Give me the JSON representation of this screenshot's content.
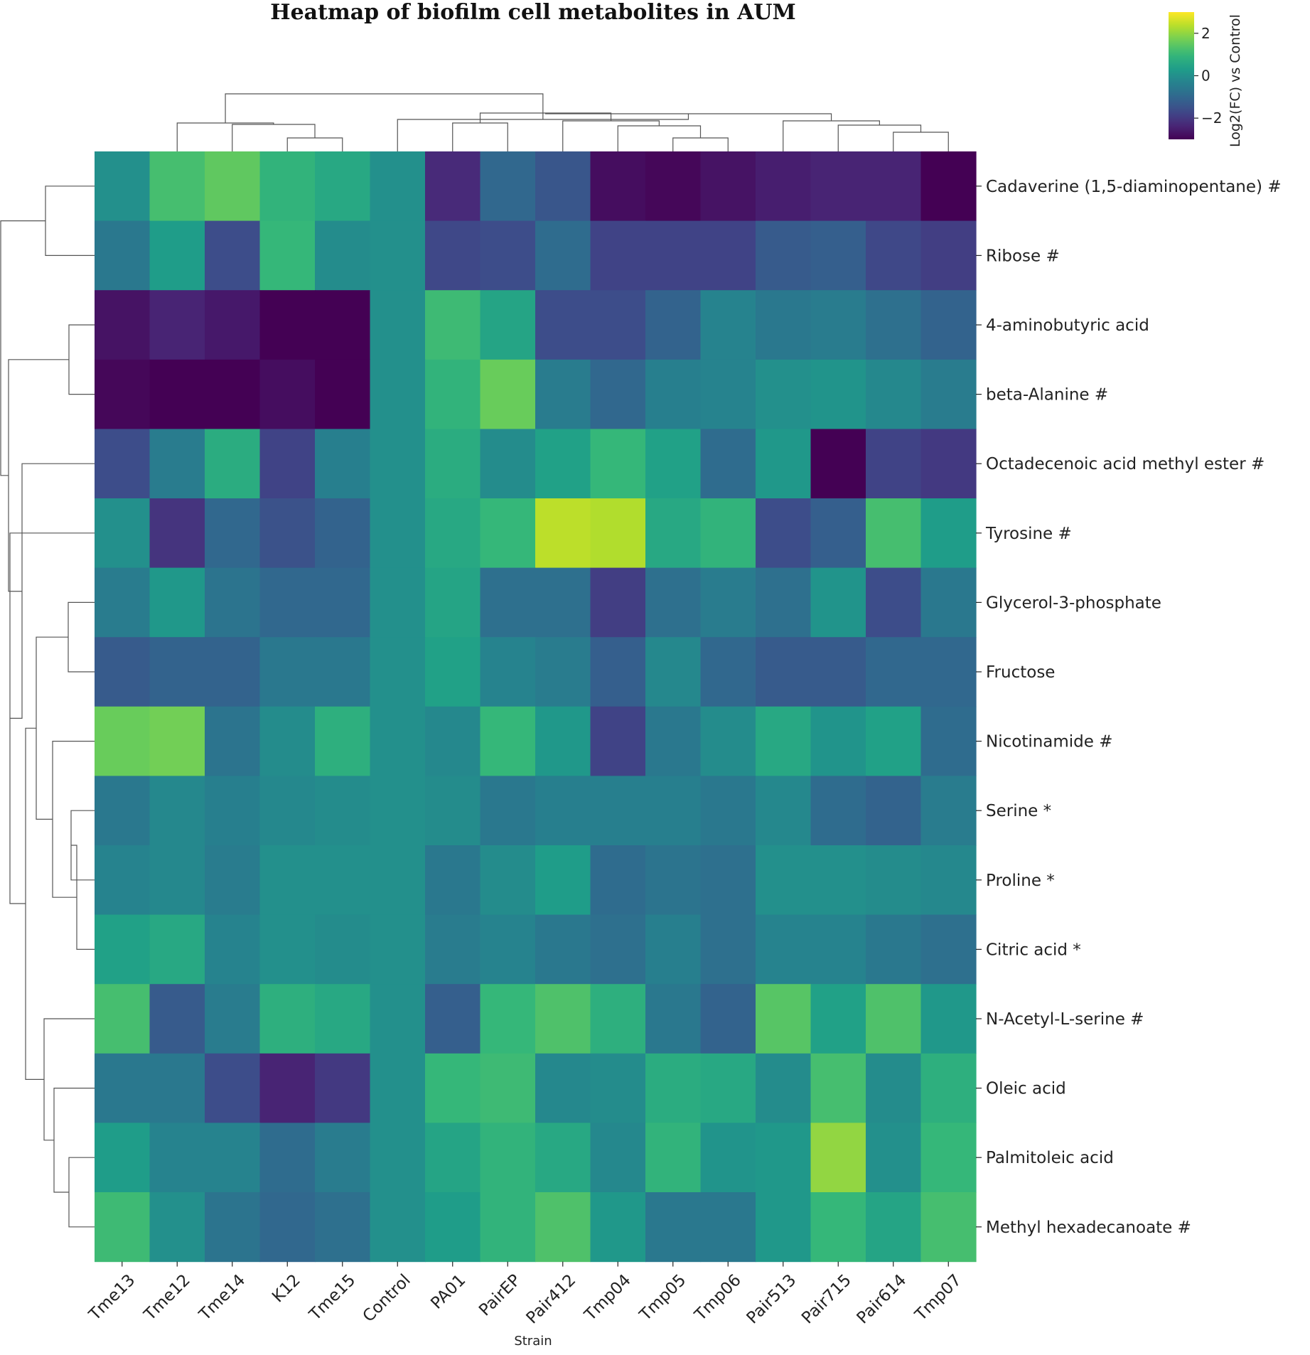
{
  "chart_data": {
    "type": "heatmap",
    "title": "Heatmap of biofilm cell metabolites in AUM",
    "xlabel": "Strain",
    "colorbar_label": "Log2(FC) vs Control",
    "colorbar_ticks": [
      "2",
      "0",
      "−2"
    ],
    "colorbar_tick_values": [
      2,
      0,
      -2
    ],
    "value_range": [
      -3,
      3
    ],
    "colormap": "viridis",
    "columns": [
      "Tme13",
      "Tme12",
      "Tme14",
      "K12",
      "Tme15",
      "Control",
      "PA01",
      "PairEP",
      "Pair412",
      "Tmp04",
      "Tmp05",
      "Tmp06",
      "Pair513",
      "Pair715",
      "Pair614",
      "Tmp07"
    ],
    "rows": [
      "Cadaverine (1,5-diaminopentane) #",
      "Ribose #",
      "4-aminobutyric acid",
      "beta-Alanine #",
      "Octadecenoic acid methyl ester #",
      "Tyrosine #",
      "Glycerol-3-phosphate",
      "Fructose",
      "Nicotinamide #",
      "Serine *",
      "Proline *",
      "Citric acid *",
      "N-Acetyl-L-serine #",
      "Oleic acid",
      "Palmitoleic acid",
      "Methyl hexadecanoate #"
    ],
    "values": [
      [
        0.0,
        1.2,
        1.5,
        0.9,
        0.6,
        0,
        -2.3,
        -1.0,
        -1.4,
        -2.8,
        -2.9,
        -2.7,
        -2.5,
        -2.4,
        -2.4,
        -3.3
      ],
      [
        -0.6,
        0.3,
        -1.6,
        1.0,
        -0.1,
        0,
        -1.7,
        -1.6,
        -0.9,
        -1.8,
        -1.8,
        -1.8,
        -1.3,
        -1.2,
        -1.7,
        -1.9
      ],
      [
        -2.7,
        -2.4,
        -2.6,
        -3.2,
        -3.0,
        0,
        1.1,
        0.5,
        -1.6,
        -1.6,
        -1.1,
        -0.3,
        -0.6,
        -0.5,
        -0.8,
        -1.1
      ],
      [
        -2.9,
        -3.4,
        -3.3,
        -2.8,
        -3.1,
        0,
        0.9,
        1.6,
        -0.5,
        -1.0,
        -0.4,
        -0.3,
        0.0,
        0.1,
        -0.2,
        -0.5
      ],
      [
        -1.6,
        -0.5,
        0.7,
        -1.8,
        -0.4,
        0,
        0.7,
        -0.1,
        0.4,
        1.0,
        0.4,
        -0.9,
        0.2,
        -3.4,
        -1.8,
        -2.0
      ],
      [
        0.0,
        -2.1,
        -1.0,
        -1.5,
        -1.1,
        0,
        0.6,
        1.0,
        2.4,
        2.3,
        0.6,
        0.9,
        -1.6,
        -1.2,
        1.2,
        0.3
      ],
      [
        -0.5,
        0.2,
        -0.7,
        -1.0,
        -1.0,
        0,
        0.5,
        -0.8,
        -0.8,
        -1.9,
        -0.8,
        -0.5,
        -0.8,
        0.1,
        -1.6,
        -0.6
      ],
      [
        -1.3,
        -1.1,
        -1.1,
        -0.6,
        -0.6,
        0,
        0.4,
        -0.3,
        -0.5,
        -1.2,
        -0.2,
        -1.0,
        -1.3,
        -1.3,
        -1.0,
        -1.0
      ],
      [
        1.6,
        1.7,
        -0.7,
        -0.1,
        0.8,
        0,
        -0.2,
        1.0,
        0.2,
        -1.8,
        -0.6,
        -0.1,
        0.6,
        0.1,
        0.4,
        -0.9
      ],
      [
        -0.6,
        -0.2,
        -0.4,
        -0.2,
        -0.1,
        0,
        -0.1,
        -0.6,
        -0.4,
        -0.4,
        -0.4,
        -0.6,
        -0.2,
        -0.9,
        -1.1,
        -0.5
      ],
      [
        -0.3,
        -0.2,
        -0.5,
        0.0,
        0.0,
        0,
        -0.6,
        -0.1,
        0.3,
        -0.9,
        -0.7,
        -0.8,
        0.0,
        0.0,
        -0.1,
        -0.2
      ],
      [
        0.4,
        0.6,
        -0.3,
        0.0,
        -0.1,
        0,
        -0.5,
        -0.3,
        -0.6,
        -0.8,
        -0.4,
        -0.8,
        -0.3,
        -0.3,
        -0.6,
        -0.8
      ],
      [
        1.2,
        -1.3,
        -0.5,
        0.8,
        0.6,
        0,
        -1.2,
        1.0,
        1.3,
        0.8,
        -0.6,
        -1.1,
        1.4,
        0.4,
        1.3,
        0.2
      ],
      [
        -0.6,
        -0.6,
        -1.6,
        -2.4,
        -2.0,
        0,
        1.0,
        1.1,
        -0.2,
        -0.1,
        0.7,
        0.6,
        -0.1,
        1.2,
        -0.1,
        0.8
      ],
      [
        0.3,
        -0.3,
        -0.3,
        -0.9,
        -0.5,
        0,
        0.5,
        0.9,
        0.6,
        -0.2,
        0.9,
        0.1,
        0.2,
        2.0,
        0.0,
        1.0
      ],
      [
        1.1,
        0.0,
        -0.7,
        -1.0,
        -0.8,
        0,
        0.3,
        0.9,
        1.3,
        0.2,
        -0.6,
        -0.6,
        0.2,
        1.0,
        0.5,
        1.2
      ]
    ]
  }
}
